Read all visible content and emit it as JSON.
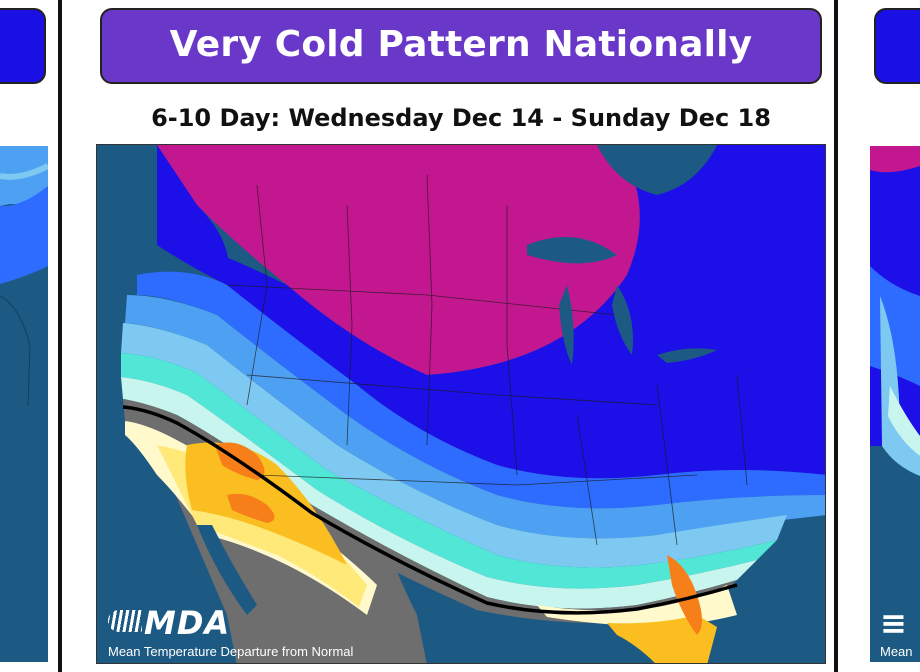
{
  "title": "Very Cold Pattern Nationally",
  "subtitle": "6-10 Day: Wednesday Dec 14 - Sunday Dec 18",
  "logo_text": "MDA",
  "caption": "Mean Temperature Departure from Normal",
  "right_panel": {
    "caption_fragment": "Mean"
  },
  "colors": {
    "banner_purple": "#6a38c9",
    "banner_blue": "#1a10e6",
    "ocean": "#1c5a84",
    "magenta": "#c2178f",
    "blue_deep": "#1c0fe8",
    "blue_mid": "#2e6bff",
    "blue_light": "#4ea0f2",
    "sky": "#7ec9f1",
    "aqua": "#52e6d6",
    "pale_cyan": "#c8f5ee",
    "gray": "#6e6e6e",
    "cream": "#fff9cc",
    "yellow": "#ffe978",
    "amber": "#fbbe20",
    "orange": "#f77f1a"
  }
}
